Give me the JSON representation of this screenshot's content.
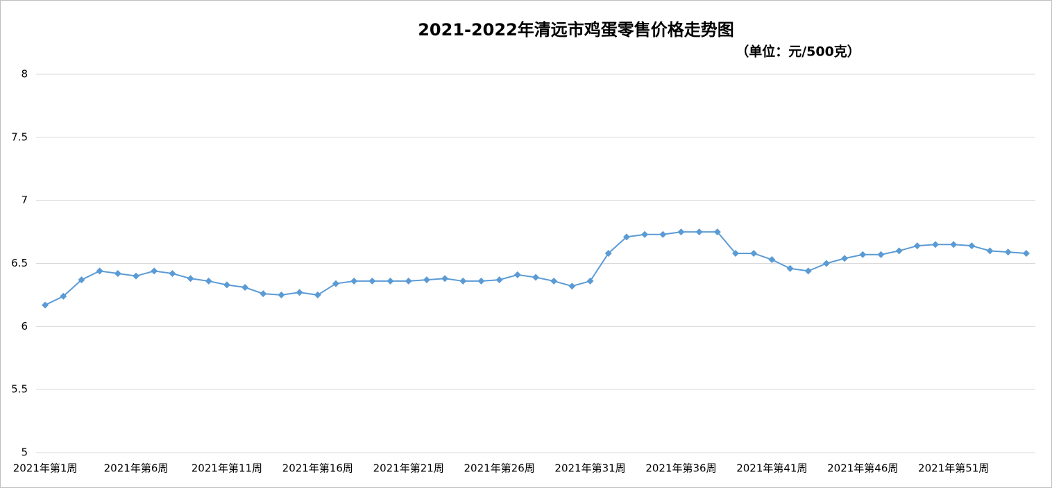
{
  "chart_data": {
    "type": "line",
    "title": "2021-2022年清远市鸡蛋零售价格走势图",
    "subtitle": "（单位：元/500克）",
    "categories": [
      "2021年第1周",
      null,
      null,
      null,
      null,
      "2021年第6周",
      null,
      null,
      null,
      null,
      "2021年第11周",
      null,
      null,
      null,
      null,
      "2021年第16周",
      null,
      null,
      null,
      null,
      "2021年第21周",
      null,
      null,
      null,
      null,
      "2021年第26周",
      null,
      null,
      null,
      null,
      "2021年第31周",
      null,
      null,
      null,
      null,
      "2021年第36周",
      null,
      null,
      null,
      null,
      "2021年第41周",
      null,
      null,
      null,
      null,
      "2021年第46周",
      null,
      null,
      null,
      null,
      "2021年第51周",
      null,
      null,
      null,
      null
    ],
    "series": [
      {
        "color": "#5b9bd5",
        "values": [
          6.17,
          6.24,
          6.37,
          6.44,
          6.42,
          6.4,
          6.44,
          6.42,
          6.38,
          6.36,
          6.33,
          6.31,
          6.26,
          6.25,
          6.27,
          6.25,
          6.34,
          6.36,
          6.36,
          6.36,
          6.36,
          6.37,
          6.38,
          6.36,
          6.36,
          6.37,
          6.41,
          6.39,
          6.36,
          6.32,
          6.36,
          6.58,
          6.71,
          6.73,
          6.73,
          6.75,
          6.75,
          6.75,
          6.58,
          6.58,
          6.53,
          6.46,
          6.44,
          6.5,
          6.54,
          6.57,
          6.57,
          6.6,
          6.64,
          6.65,
          6.65,
          6.64,
          6.6,
          6.59,
          6.58
        ]
      }
    ],
    "ylim": [
      5,
      8
    ],
    "yticks": [
      5,
      5.5,
      6,
      6.5,
      7,
      7.5,
      8
    ],
    "grid": true
  }
}
